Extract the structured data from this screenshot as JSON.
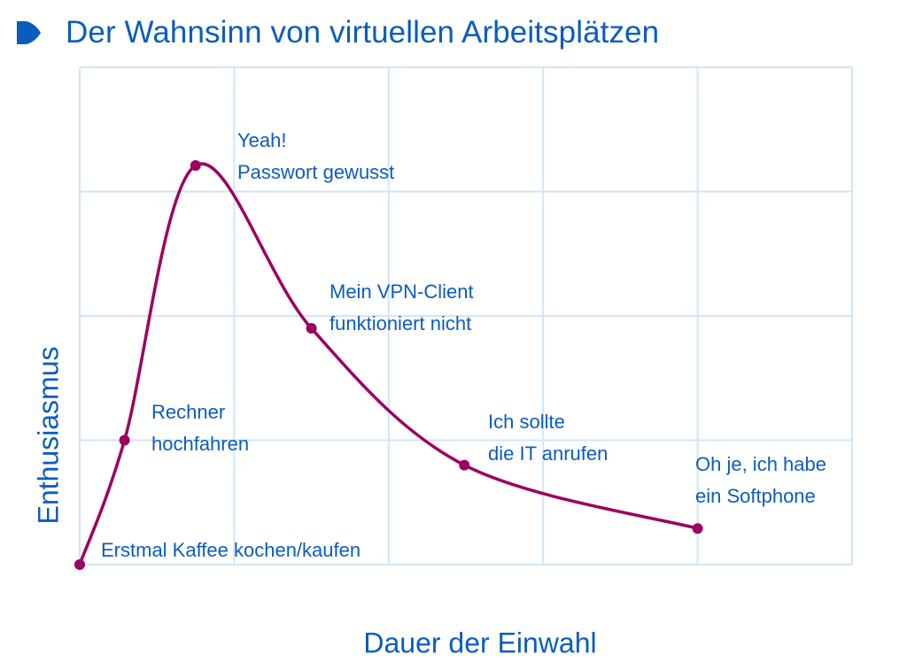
{
  "slide": {
    "title": "Der Wahnsinn von virtuellen Arbeitsplätzen",
    "bullet_icon": "play-bullet-icon"
  },
  "colors": {
    "text": "#0b5cbf",
    "grid": "#cfe6fb",
    "curve": "#9c0060"
  },
  "chart_data": {
    "type": "line",
    "title": "Der Wahnsinn von virtuellen Arbeitsplätzen",
    "xlabel": "Dauer der Einwahl",
    "ylabel": "Enthusiasmus",
    "xlim": [
      0,
      5
    ],
    "ylim": [
      0,
      4
    ],
    "grid": true,
    "smooth": true,
    "x_ticks_labels": [],
    "y_ticks_labels": [],
    "series": [
      {
        "name": "Enthusiasmus",
        "points": [
          {
            "x": 0.0,
            "y": 0.0,
            "label": [
              "Erstmal Kaffee kochen/kaufen"
            ]
          },
          {
            "x": 0.29,
            "y": 1.0,
            "label": [
              "Rechner",
              "hochfahren"
            ]
          },
          {
            "x": 0.75,
            "y": 3.21,
            "label": [
              "Yeah!",
              "Passwort gewusst"
            ]
          },
          {
            "x": 1.5,
            "y": 1.9,
            "label": [
              "Mein VPN-Client",
              "funktioniert nicht"
            ]
          },
          {
            "x": 2.49,
            "y": 0.8,
            "label": [
              "Ich sollte",
              "die IT anrufen"
            ]
          },
          {
            "x": 4.0,
            "y": 0.29,
            "label": [
              "Oh je, ich habe",
              "ein Softphone"
            ]
          }
        ]
      }
    ]
  },
  "annotations": [
    {
      "line1": "Erstmal Kaffee kochen/kaufen",
      "line2": ""
    },
    {
      "line1": "Rechner",
      "line2": "hochfahren"
    },
    {
      "line1": "Yeah!",
      "line2": "Passwort gewusst"
    },
    {
      "line1": "Mein VPN-Client",
      "line2": "funktioniert nicht"
    },
    {
      "line1": "Ich sollte",
      "line2": "die IT anrufen"
    },
    {
      "line1": "Oh je, ich habe",
      "line2": "ein Softphone"
    }
  ]
}
